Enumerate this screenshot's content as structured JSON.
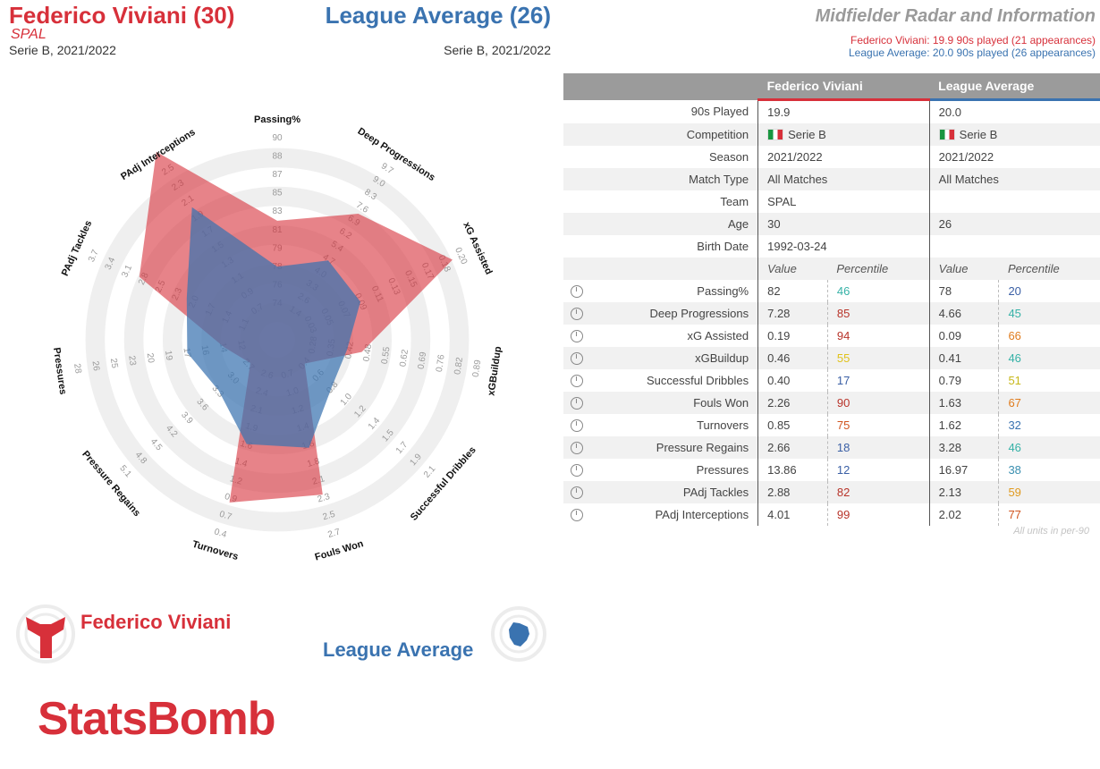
{
  "header": {
    "player_title": "Federico Viviani (30)",
    "player_team": "SPAL",
    "player_comp": "Serie B, 2021/2022",
    "avg_title": "League Average (26)",
    "avg_comp": "Serie B, 2021/2022",
    "chart_heading": "Midfielder Radar and Information",
    "player_meta": "Federico Viviani: 19.9 90s played (21 appearances)",
    "avg_meta": "League Average: 20.0 90s played (26 appearances)"
  },
  "colors": {
    "player": "#d7303a",
    "average": "#3a73b0",
    "ring": "#efefef"
  },
  "chart_data": {
    "type": "radar",
    "axes": [
      {
        "label": "Passing%",
        "ticks": [
          "74",
          "76",
          "78",
          "79",
          "81",
          "83",
          "85",
          "87",
          "88",
          "90"
        ]
      },
      {
        "label": "Deep Progressions",
        "ticks": [
          "1.4",
          "2.6",
          "3.3",
          "4.0",
          "4.7",
          "5.4",
          "6.2",
          "6.9",
          "7.6",
          "8.3",
          "9.0",
          "9.7"
        ]
      },
      {
        "label": "xG Assisted",
        "ticks": [
          "0.03",
          "0.05",
          "0.07",
          "0.09",
          "0.11",
          "0.13",
          "0.15",
          "0.17",
          "0.18",
          "0.20"
        ]
      },
      {
        "label": "xGBuildup",
        "ticks": [
          "0.28",
          "0.35",
          "0.42",
          "0.48",
          "0.55",
          "0.62",
          "0.69",
          "0.76",
          "0.82",
          "0.89"
        ]
      },
      {
        "label": "Successful Dribbles",
        "ticks": [
          "0.4",
          "0.6",
          "0.8",
          "1.0",
          "1.2",
          "1.4",
          "1.5",
          "1.7",
          "1.9",
          "2.1"
        ]
      },
      {
        "label": "Fouls Won",
        "ticks": [
          "0.7",
          "1.0",
          "1.2",
          "1.4",
          "1.6",
          "1.8",
          "2.1",
          "2.3",
          "2.5",
          "2.7"
        ]
      },
      {
        "label": "Turnovers",
        "ticks": [
          "2.6",
          "2.4",
          "2.1",
          "1.9",
          "1.6",
          "1.4",
          "1.2",
          "0.9",
          "0.7",
          "0.4"
        ]
      },
      {
        "label": "Pressure Regains",
        "ticks": [
          "2.7",
          "3.0",
          "3.3",
          "3.6",
          "3.9",
          "4.2",
          "4.5",
          "4.8",
          "5.1"
        ]
      },
      {
        "label": "Pressures",
        "ticks": [
          "12",
          "14",
          "16",
          "17",
          "19",
          "20",
          "23",
          "25",
          "26",
          "28"
        ]
      },
      {
        "label": "PAdj Tackles",
        "ticks": [
          "1.1",
          "1.4",
          "1.7",
          "2.0",
          "2.3",
          "2.5",
          "2.8",
          "3.1",
          "3.4",
          "3.7"
        ]
      },
      {
        "label": "PAdj Interceptions",
        "ticks": [
          "0.7",
          "0.9",
          "1.1",
          "1.3",
          "1.5",
          "1.7",
          "1.9",
          "2.1",
          "2.3",
          "2.5"
        ]
      }
    ],
    "series": [
      {
        "name": "Federico Viviani",
        "values": [
          82,
          7.28,
          0.19,
          0.46,
          0.4,
          2.26,
          0.85,
          2.66,
          13.86,
          2.88,
          4.01
        ]
      },
      {
        "name": "League Average",
        "values": [
          78,
          4.66,
          0.09,
          0.41,
          0.79,
          1.63,
          1.62,
          3.28,
          16.97,
          2.13,
          2.02
        ]
      }
    ]
  },
  "table": {
    "col_player": "Federico Viviani",
    "col_average": "League Average",
    "info_rows": [
      {
        "label": "90s Played",
        "player": "19.9",
        "average": "20.0"
      },
      {
        "label": "Competition",
        "player": "Serie B",
        "average": "Serie B",
        "flag": true
      },
      {
        "label": "Season",
        "player": "2021/2022",
        "average": "2021/2022"
      },
      {
        "label": "Match Type",
        "player": "All Matches",
        "average": "All Matches"
      },
      {
        "label": "Team",
        "player": "SPAL",
        "average": ""
      },
      {
        "label": "Age",
        "player": "30",
        "average": "26"
      },
      {
        "label": "Birth Date",
        "player": "1992-03-24",
        "average": ""
      }
    ],
    "sub_value": "Value",
    "sub_percentile": "Percentile",
    "stat_rows": [
      {
        "label": "Passing%",
        "p_val": "82",
        "p_pct": "46",
        "p_col": "#36b2a7",
        "a_val": "78",
        "a_pct": "20",
        "a_col": "#3a5fa5"
      },
      {
        "label": "Deep Progressions",
        "p_val": "7.28",
        "p_pct": "85",
        "p_col": "#b8342a",
        "a_val": "4.66",
        "a_pct": "45",
        "a_col": "#36b2a7"
      },
      {
        "label": "xG Assisted",
        "p_val": "0.19",
        "p_pct": "94",
        "p_col": "#b8342a",
        "a_val": "0.09",
        "a_pct": "66",
        "a_col": "#e07c1e"
      },
      {
        "label": "xGBuildup",
        "p_val": "0.46",
        "p_pct": "55",
        "p_col": "#e0c21a",
        "a_val": "0.41",
        "a_pct": "46",
        "a_col": "#36b2a7"
      },
      {
        "label": "Successful Dribbles",
        "p_val": "0.40",
        "p_pct": "17",
        "p_col": "#3a5fa5",
        "a_val": "0.79",
        "a_pct": "51",
        "a_col": "#c7b81a"
      },
      {
        "label": "Fouls Won",
        "p_val": "2.26",
        "p_pct": "90",
        "p_col": "#b8342a",
        "a_val": "1.63",
        "a_pct": "67",
        "a_col": "#e07c1e"
      },
      {
        "label": "Turnovers",
        "p_val": "0.85",
        "p_pct": "75",
        "p_col": "#d0541e",
        "a_val": "1.62",
        "a_pct": "32",
        "a_col": "#3a73b0"
      },
      {
        "label": "Pressure Regains",
        "p_val": "2.66",
        "p_pct": "18",
        "p_col": "#3a5fa5",
        "a_val": "3.28",
        "a_pct": "46",
        "a_col": "#36b2a7"
      },
      {
        "label": "Pressures",
        "p_val": "13.86",
        "p_pct": "12",
        "p_col": "#3a5fa5",
        "a_val": "16.97",
        "a_pct": "38",
        "a_col": "#3a8fb0"
      },
      {
        "label": "PAdj Tackles",
        "p_val": "2.88",
        "p_pct": "82",
        "p_col": "#b8342a",
        "a_val": "2.13",
        "a_pct": "59",
        "a_col": "#e09a1e"
      },
      {
        "label": "PAdj Interceptions",
        "p_val": "4.01",
        "p_pct": "99",
        "p_col": "#b8342a",
        "a_val": "2.02",
        "a_pct": "77",
        "a_col": "#d0541e"
      }
    ],
    "units_note": "All units in per-90"
  },
  "legend": {
    "player": "Federico Viviani",
    "average": "League Average"
  },
  "brand": "StatsBomb"
}
